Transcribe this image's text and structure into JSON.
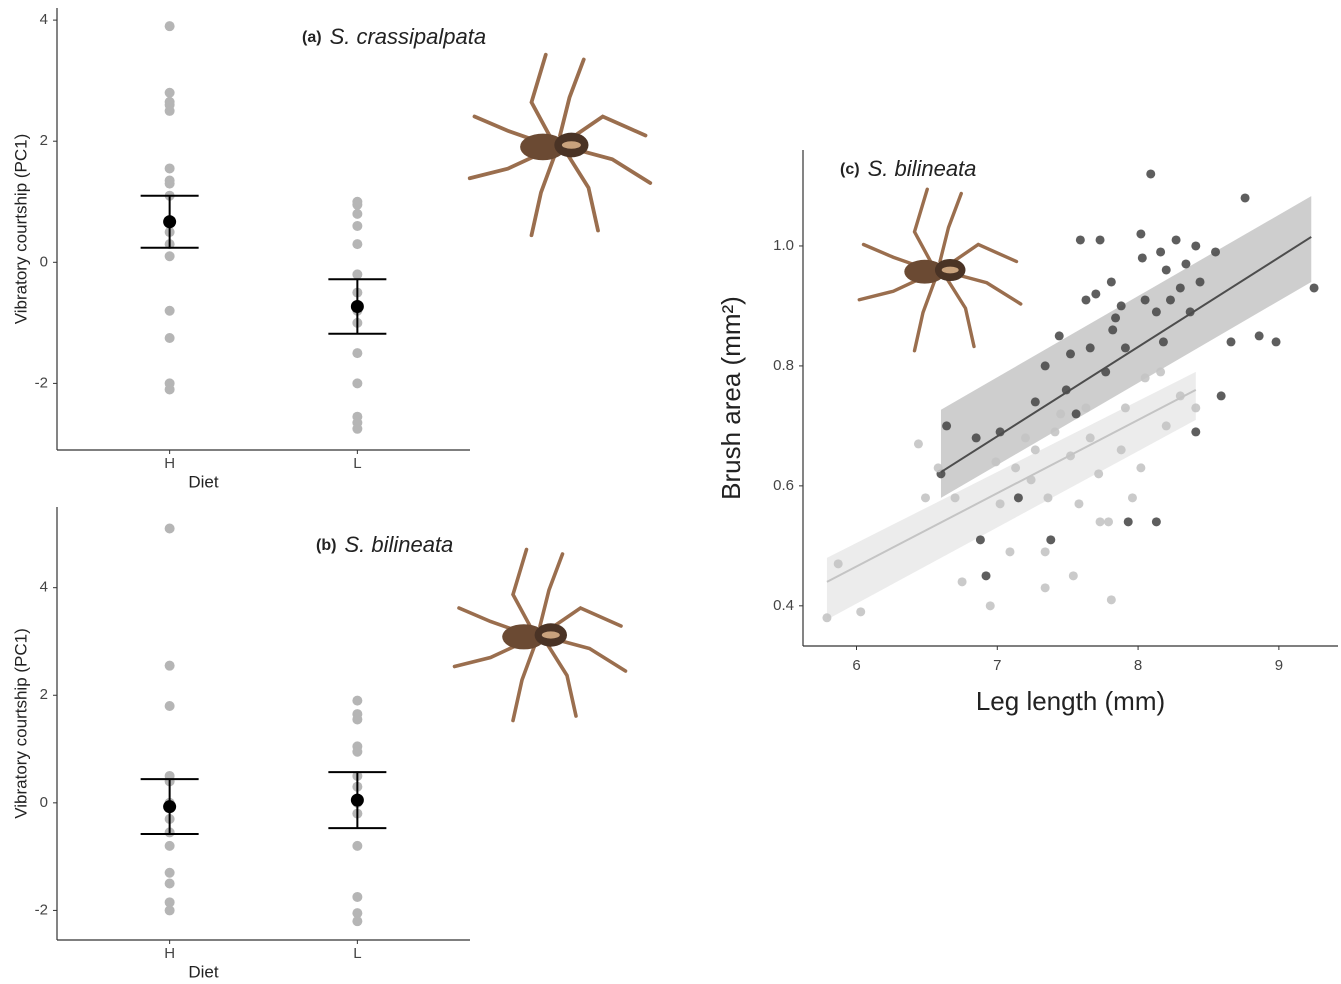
{
  "chart_data": [
    {
      "type": "strip",
      "panel": "(a)",
      "title": "S. crassipalpata",
      "x_label": "Diet",
      "y_label": "Vibratory courtship (PC1)",
      "categories": [
        "H",
        "L"
      ],
      "points": [
        [
          3.9,
          2.8,
          2.65,
          2.6,
          2.5,
          1.55,
          1.35,
          1.3,
          1.1,
          0.7,
          0.5,
          0.3,
          0.1,
          -0.8,
          -1.25,
          -2.0,
          -2.1
        ],
        [
          1.0,
          0.95,
          0.8,
          0.6,
          0.3,
          -0.2,
          -0.5,
          -0.8,
          -1.0,
          -1.5,
          -2.0,
          -2.55,
          -2.65,
          -2.75
        ]
      ],
      "point_color": "#b5b5b5",
      "means": [
        0.67,
        -0.73
      ],
      "errors": [
        0.43,
        0.45
      ],
      "mean_color": "#000000",
      "ylim": [
        -3.1,
        4.2
      ],
      "yticks": [
        -2,
        0,
        2,
        4
      ]
    },
    {
      "type": "strip",
      "panel": "(b)",
      "title": "S. bilineata",
      "x_label": "Diet",
      "y_label": "Vibratory courtship (PC1)",
      "categories": [
        "H",
        "L"
      ],
      "points": [
        [
          5.1,
          2.55,
          1.8,
          0.5,
          0.4,
          0.0,
          -0.3,
          -0.55,
          -0.8,
          -1.3,
          -1.5,
          -1.85,
          -2.0
        ],
        [
          1.9,
          1.65,
          1.55,
          1.05,
          0.95,
          0.5,
          0.3,
          0.0,
          -0.2,
          -0.8,
          -1.75,
          -2.05,
          -2.2
        ]
      ],
      "point_color": "#b5b5b5",
      "means": [
        -0.07,
        0.05
      ],
      "errors": [
        0.51,
        0.52
      ],
      "mean_color": "#000000",
      "ylim": [
        -2.55,
        5.5
      ],
      "yticks": [
        -2,
        0,
        2,
        4
      ]
    },
    {
      "type": "scatter",
      "panel": "(c)",
      "title": "S. bilineata",
      "x_label": "Leg length (mm)",
      "y_label": "Brush area (mm²)",
      "xlim": [
        5.62,
        9.42
      ],
      "xticks": [
        6,
        7,
        8,
        9
      ],
      "ylim": [
        0.333,
        1.16
      ],
      "yticks": [
        0.4,
        0.6,
        0.8,
        {
          "value": 1,
          "label": "1.0"
        }
      ],
      "series": [
        {
          "color": "#4d4d4d",
          "band_color": "#bdbdbd",
          "x": [
            6.64,
            6.6,
            6.85,
            6.88,
            6.92,
            7.02,
            7.27,
            7.34,
            7.44,
            7.49,
            7.52,
            7.56,
            7.59,
            7.63,
            7.66,
            7.7,
            7.73,
            7.77,
            7.81,
            7.82,
            7.84,
            7.88,
            7.91,
            8.02,
            8.03,
            8.05,
            8.09,
            8.13,
            8.16,
            8.18,
            8.2,
            8.23,
            8.27,
            8.3,
            8.34,
            8.37,
            8.41,
            8.44,
            8.55,
            8.59,
            8.66,
            8.76,
            8.86,
            8.98,
            9.25,
            8.41,
            7.15,
            7.38,
            7.93,
            8.13
          ],
          "y": [
            0.7,
            0.62,
            0.68,
            0.51,
            0.45,
            0.69,
            0.74,
            0.8,
            0.85,
            0.76,
            0.82,
            0.72,
            1.01,
            0.91,
            0.83,
            0.92,
            1.01,
            0.79,
            0.94,
            0.86,
            0.88,
            0.9,
            0.83,
            1.02,
            0.98,
            0.91,
            1.12,
            0.89,
            0.99,
            0.84,
            0.96,
            0.91,
            1.01,
            0.93,
            0.97,
            0.89,
            1.0,
            0.94,
            0.99,
            0.75,
            0.84,
            1.08,
            0.85,
            0.84,
            0.93,
            0.69,
            0.58,
            0.51,
            0.54,
            0.54
          ],
          "fit_x": [
            6.6,
            9.23
          ],
          "fit_y": [
            0.623,
            1.015
          ],
          "fit_lower": [
            0.58,
            0.94
          ],
          "fit_upper": [
            0.727,
            1.083
          ]
        },
        {
          "color": "#c4c4c4",
          "band_color": "#e6e6e6",
          "x": [
            5.79,
            5.87,
            6.03,
            6.44,
            6.49,
            6.58,
            6.7,
            6.75,
            6.95,
            6.99,
            7.02,
            7.09,
            7.13,
            7.2,
            7.24,
            7.27,
            7.34,
            7.36,
            7.41,
            7.45,
            7.52,
            7.54,
            7.58,
            7.63,
            7.66,
            7.72,
            7.73,
            7.79,
            7.81,
            7.88,
            7.91,
            7.96,
            8.02,
            8.05,
            8.16,
            8.2,
            8.3,
            8.41,
            7.34
          ],
          "y": [
            0.38,
            0.47,
            0.39,
            0.67,
            0.58,
            0.63,
            0.58,
            0.44,
            0.4,
            0.64,
            0.57,
            0.49,
            0.63,
            0.68,
            0.61,
            0.66,
            0.43,
            0.58,
            0.69,
            0.72,
            0.65,
            0.45,
            0.57,
            0.73,
            0.68,
            0.62,
            0.54,
            0.54,
            0.41,
            0.66,
            0.73,
            0.58,
            0.63,
            0.78,
            0.79,
            0.7,
            0.75,
            0.73,
            0.49
          ],
          "fit_x": [
            5.79,
            8.41
          ],
          "fit_y": [
            0.44,
            0.76
          ],
          "fit_lower": [
            0.377,
            0.71
          ],
          "fit_upper": [
            0.48,
            0.79
          ]
        }
      ]
    }
  ]
}
